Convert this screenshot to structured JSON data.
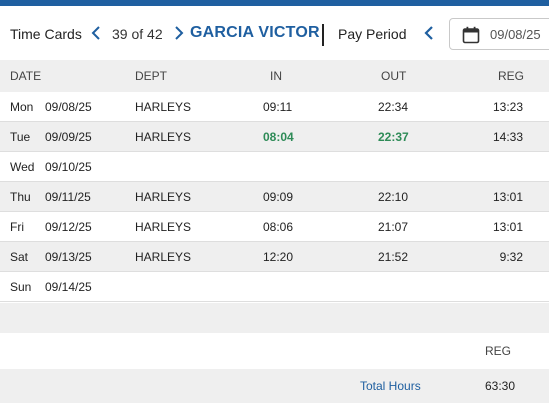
{
  "header": {
    "title": "Time Cards",
    "counter": "39 of 42",
    "employee_name": "GARCIA VICTOR",
    "pay_period_label": "Pay Period",
    "pay_period_date": "09/08/25",
    "icons": {
      "prev": "chevron-left-icon",
      "next": "chevron-right-icon",
      "calendar": "calendar-icon"
    },
    "accent_color": "#1f5fa0"
  },
  "table": {
    "columns": {
      "date": "DATE",
      "dept": "DEPT",
      "in": "IN",
      "out": "OUT",
      "reg": "REG"
    },
    "rows": [
      {
        "day": "Mon",
        "date": "09/08/25",
        "dept": "HARLEYS",
        "in": "09:11",
        "out": "22:34",
        "reg": "13:23"
      },
      {
        "day": "Tue",
        "date": "09/09/25",
        "dept": "HARLEYS",
        "in": "08:04",
        "out": "22:37",
        "reg": "14:33"
      },
      {
        "day": "Wed",
        "date": "09/10/25",
        "dept": "",
        "in": "",
        "out": "",
        "reg": ""
      },
      {
        "day": "Thu",
        "date": "09/11/25",
        "dept": "HARLEYS",
        "in": "09:09",
        "out": "22:10",
        "reg": "13:01"
      },
      {
        "day": "Fri",
        "date": "09/12/25",
        "dept": "HARLEYS",
        "in": "08:06",
        "out": "21:07",
        "reg": "13:01"
      },
      {
        "day": "Sat",
        "date": "09/13/25",
        "dept": "HARLEYS",
        "in": "12:20",
        "out": "21:52",
        "reg": "9:32"
      },
      {
        "day": "Sun",
        "date": "09/14/25",
        "dept": "",
        "in": "",
        "out": "",
        "reg": ""
      }
    ],
    "highlight_color": "#2e8b57"
  },
  "summary": {
    "column": "REG",
    "total_label": "Total Hours",
    "total_value": "63:30"
  }
}
